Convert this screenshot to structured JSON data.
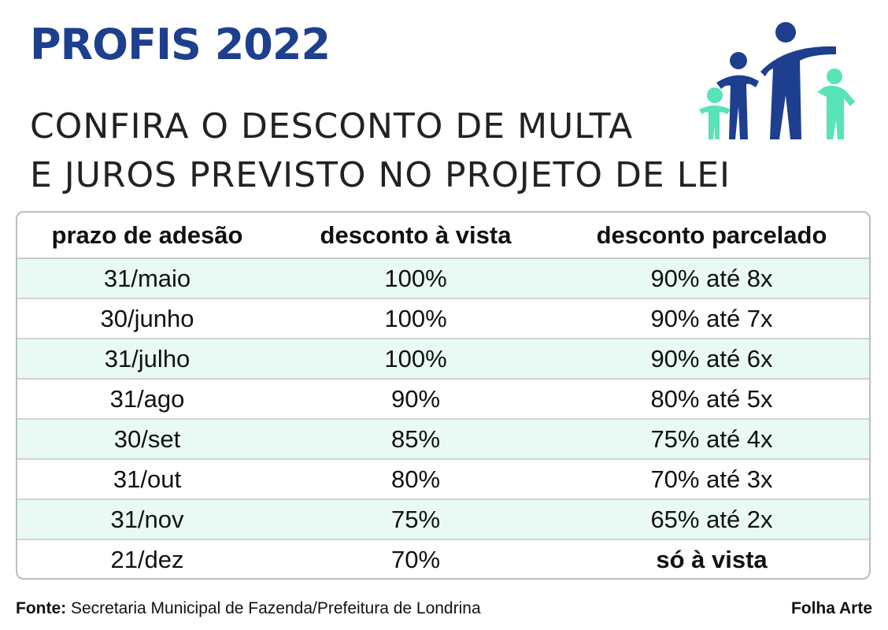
{
  "header": {
    "title": "PROFIS 2022",
    "subtitle_line1": "CONFIRA O DESCONTO DE MULTA",
    "subtitle_line2": "E JUROS PREVISTO NO PROJETO DE LEI",
    "logo_icon": "family-people-icon",
    "colors": {
      "title": "#1d3f8e",
      "logo_primary": "#1d3f8e",
      "logo_accent": "#58e3b8",
      "row_alt": "#e9f9f3"
    }
  },
  "table": {
    "headers": [
      "prazo de adesão",
      "desconto à vista",
      "desconto parcelado"
    ],
    "rows": [
      [
        "31/maio",
        "100%",
        "90% até 8x"
      ],
      [
        "30/junho",
        "100%",
        "90% até 7x"
      ],
      [
        "31/julho",
        "100%",
        "90% até 6x"
      ],
      [
        "31/ago",
        "90%",
        "80% até 5x"
      ],
      [
        "30/set",
        "85%",
        "75% até 4x"
      ],
      [
        "31/out",
        "80%",
        "70% até 3x"
      ],
      [
        "31/nov",
        "75%",
        "65% até 2x"
      ],
      [
        "21/dez",
        "70%",
        "só à vista"
      ]
    ]
  },
  "footer": {
    "source_label": "Fonte:",
    "source_text": " Secretaria Municipal de Fazenda/Prefeitura de Londrina",
    "credit": "Folha Arte"
  }
}
